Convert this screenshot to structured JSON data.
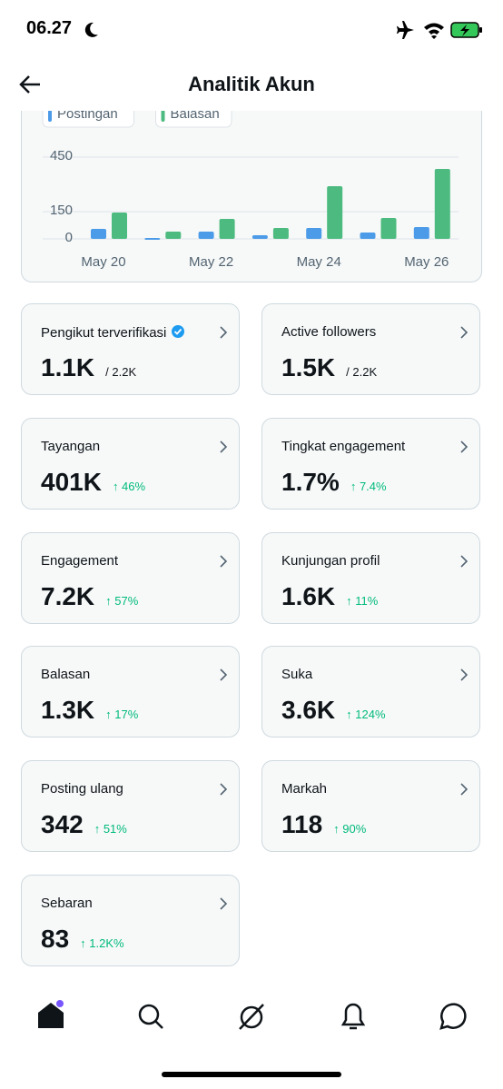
{
  "status_bar": {
    "time": "06.27"
  },
  "header": {
    "title": "Analitik Akun"
  },
  "chart_data": {
    "type": "bar",
    "categories": [
      "May 20",
      null,
      "May 22",
      null,
      "May 24",
      null,
      "May 26"
    ],
    "series": [
      {
        "name": "Postingan",
        "color": "#4c9be8",
        "values": [
          55,
          5,
          40,
          20,
          60,
          35,
          65
        ]
      },
      {
        "name": "Balasan",
        "color": "#4dbb7f",
        "values": [
          145,
          40,
          110,
          60,
          290,
          115,
          385
        ]
      }
    ],
    "ylim": [
      0,
      450
    ],
    "yticks": [
      0,
      150,
      450
    ],
    "grid": true
  },
  "metrics": [
    {
      "label": "Pengikut terverifikasi",
      "verified": true,
      "value": "1.1K",
      "total": "/ 2.2K"
    },
    {
      "label": "Active followers",
      "value": "1.5K",
      "total": "/ 2.2K"
    },
    {
      "label": "Tayangan",
      "value": "401K",
      "change": "↑ 46%"
    },
    {
      "label": "Tingkat engagement",
      "value": "1.7%",
      "change": "↑ 7.4%"
    },
    {
      "label": "Engagement",
      "value": "7.2K",
      "change": "↑ 57%"
    },
    {
      "label": "Kunjungan profil",
      "value": "1.6K",
      "change": "↑ 11%"
    },
    {
      "label": "Balasan",
      "value": "1.3K",
      "change": "↑ 17%"
    },
    {
      "label": "Suka",
      "value": "3.6K",
      "change": "↑ 124%"
    },
    {
      "label": "Posting ulang",
      "value": "342",
      "change": "↑ 51%"
    },
    {
      "label": "Markah",
      "value": "118",
      "change": "↑ 90%"
    },
    {
      "label": "Sebaran",
      "value": "83",
      "change": "↑ 1.2K%"
    }
  ]
}
